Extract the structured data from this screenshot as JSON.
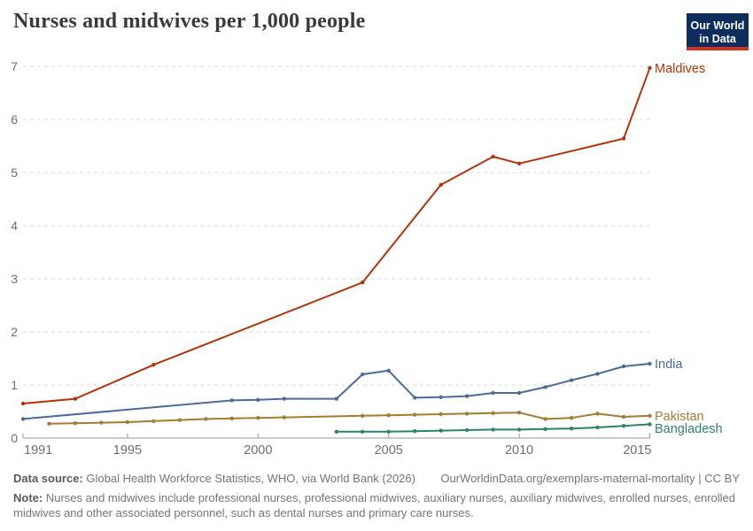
{
  "header": {
    "title": "Nurses and midwives per 1,000 people",
    "logo": {
      "line1": "Our World",
      "line2": "in Data",
      "bg_color": "#0d2e5c",
      "bar_color": "#c9351f"
    }
  },
  "chart_data": {
    "type": "line",
    "title": "Nurses and midwives per 1,000 people",
    "xlabel": "",
    "ylabel": "",
    "xlim": [
      1991,
      2015
    ],
    "ylim": [
      0,
      7
    ],
    "x_ticks": [
      1991,
      1995,
      2000,
      2005,
      2010,
      2015
    ],
    "y_ticks": [
      0,
      1,
      2,
      3,
      4,
      5,
      6,
      7
    ],
    "grid": "horizontal-dashed",
    "legend_position": "line-end-labels",
    "series": [
      {
        "name": "Maldives",
        "color": "#b13507",
        "points": [
          [
            1991,
            0.65
          ],
          [
            1993,
            0.74
          ],
          [
            1996,
            1.38
          ],
          [
            2004,
            2.93
          ],
          [
            2007,
            4.77
          ],
          [
            2009,
            5.3
          ],
          [
            2010,
            5.17
          ],
          [
            2014,
            5.64
          ],
          [
            2015,
            6.97
          ]
        ]
      },
      {
        "name": "India",
        "color": "#4c6a9c",
        "points": [
          [
            1991,
            0.36
          ],
          [
            1999,
            0.71
          ],
          [
            2000,
            0.72
          ],
          [
            2001,
            0.74
          ],
          [
            2003,
            0.74
          ],
          [
            2004,
            1.2
          ],
          [
            2005,
            1.27
          ],
          [
            2006,
            0.76
          ],
          [
            2007,
            0.77
          ],
          [
            2008,
            0.79
          ],
          [
            2009,
            0.85
          ],
          [
            2010,
            0.85
          ],
          [
            2011,
            0.96
          ],
          [
            2012,
            1.09
          ],
          [
            2013,
            1.21
          ],
          [
            2014,
            1.35
          ],
          [
            2015,
            1.4
          ]
        ]
      },
      {
        "name": "Pakistan",
        "color": "#a87b32",
        "points": [
          [
            1992,
            0.27
          ],
          [
            1993,
            0.28
          ],
          [
            1994,
            0.29
          ],
          [
            1995,
            0.3
          ],
          [
            1996,
            0.32
          ],
          [
            1997,
            0.34
          ],
          [
            1998,
            0.36
          ],
          [
            1999,
            0.37
          ],
          [
            2000,
            0.38
          ],
          [
            2001,
            0.39
          ],
          [
            2004,
            0.42
          ],
          [
            2005,
            0.43
          ],
          [
            2006,
            0.44
          ],
          [
            2007,
            0.45
          ],
          [
            2008,
            0.46
          ],
          [
            2009,
            0.47
          ],
          [
            2010,
            0.48
          ],
          [
            2011,
            0.36
          ],
          [
            2012,
            0.38
          ],
          [
            2013,
            0.46
          ],
          [
            2014,
            0.4
          ],
          [
            2015,
            0.42
          ]
        ]
      },
      {
        "name": "Bangladesh",
        "color": "#2c8465",
        "points": [
          [
            2003,
            0.12
          ],
          [
            2004,
            0.12
          ],
          [
            2005,
            0.12
          ],
          [
            2006,
            0.13
          ],
          [
            2007,
            0.14
          ],
          [
            2008,
            0.15
          ],
          [
            2009,
            0.16
          ],
          [
            2010,
            0.16
          ],
          [
            2011,
            0.17
          ],
          [
            2012,
            0.18
          ],
          [
            2013,
            0.2
          ],
          [
            2014,
            0.23
          ],
          [
            2015,
            0.26
          ]
        ]
      }
    ]
  },
  "footer": {
    "data_source_label": "Data source:",
    "data_source": "Global Health Workforce Statistics, WHO, via World Bank (2026)",
    "link": "OurWorldinData.org/exemplars-maternal-mortality",
    "separator": " | ",
    "license": "CC BY",
    "note_label": "Note:",
    "note": "Nurses and midwives include professional nurses, professional midwives, auxiliary nurses, auxiliary midwives, enrolled nurses, enrolled midwives and other associated personnel, such as dental nurses and primary care nurses."
  }
}
